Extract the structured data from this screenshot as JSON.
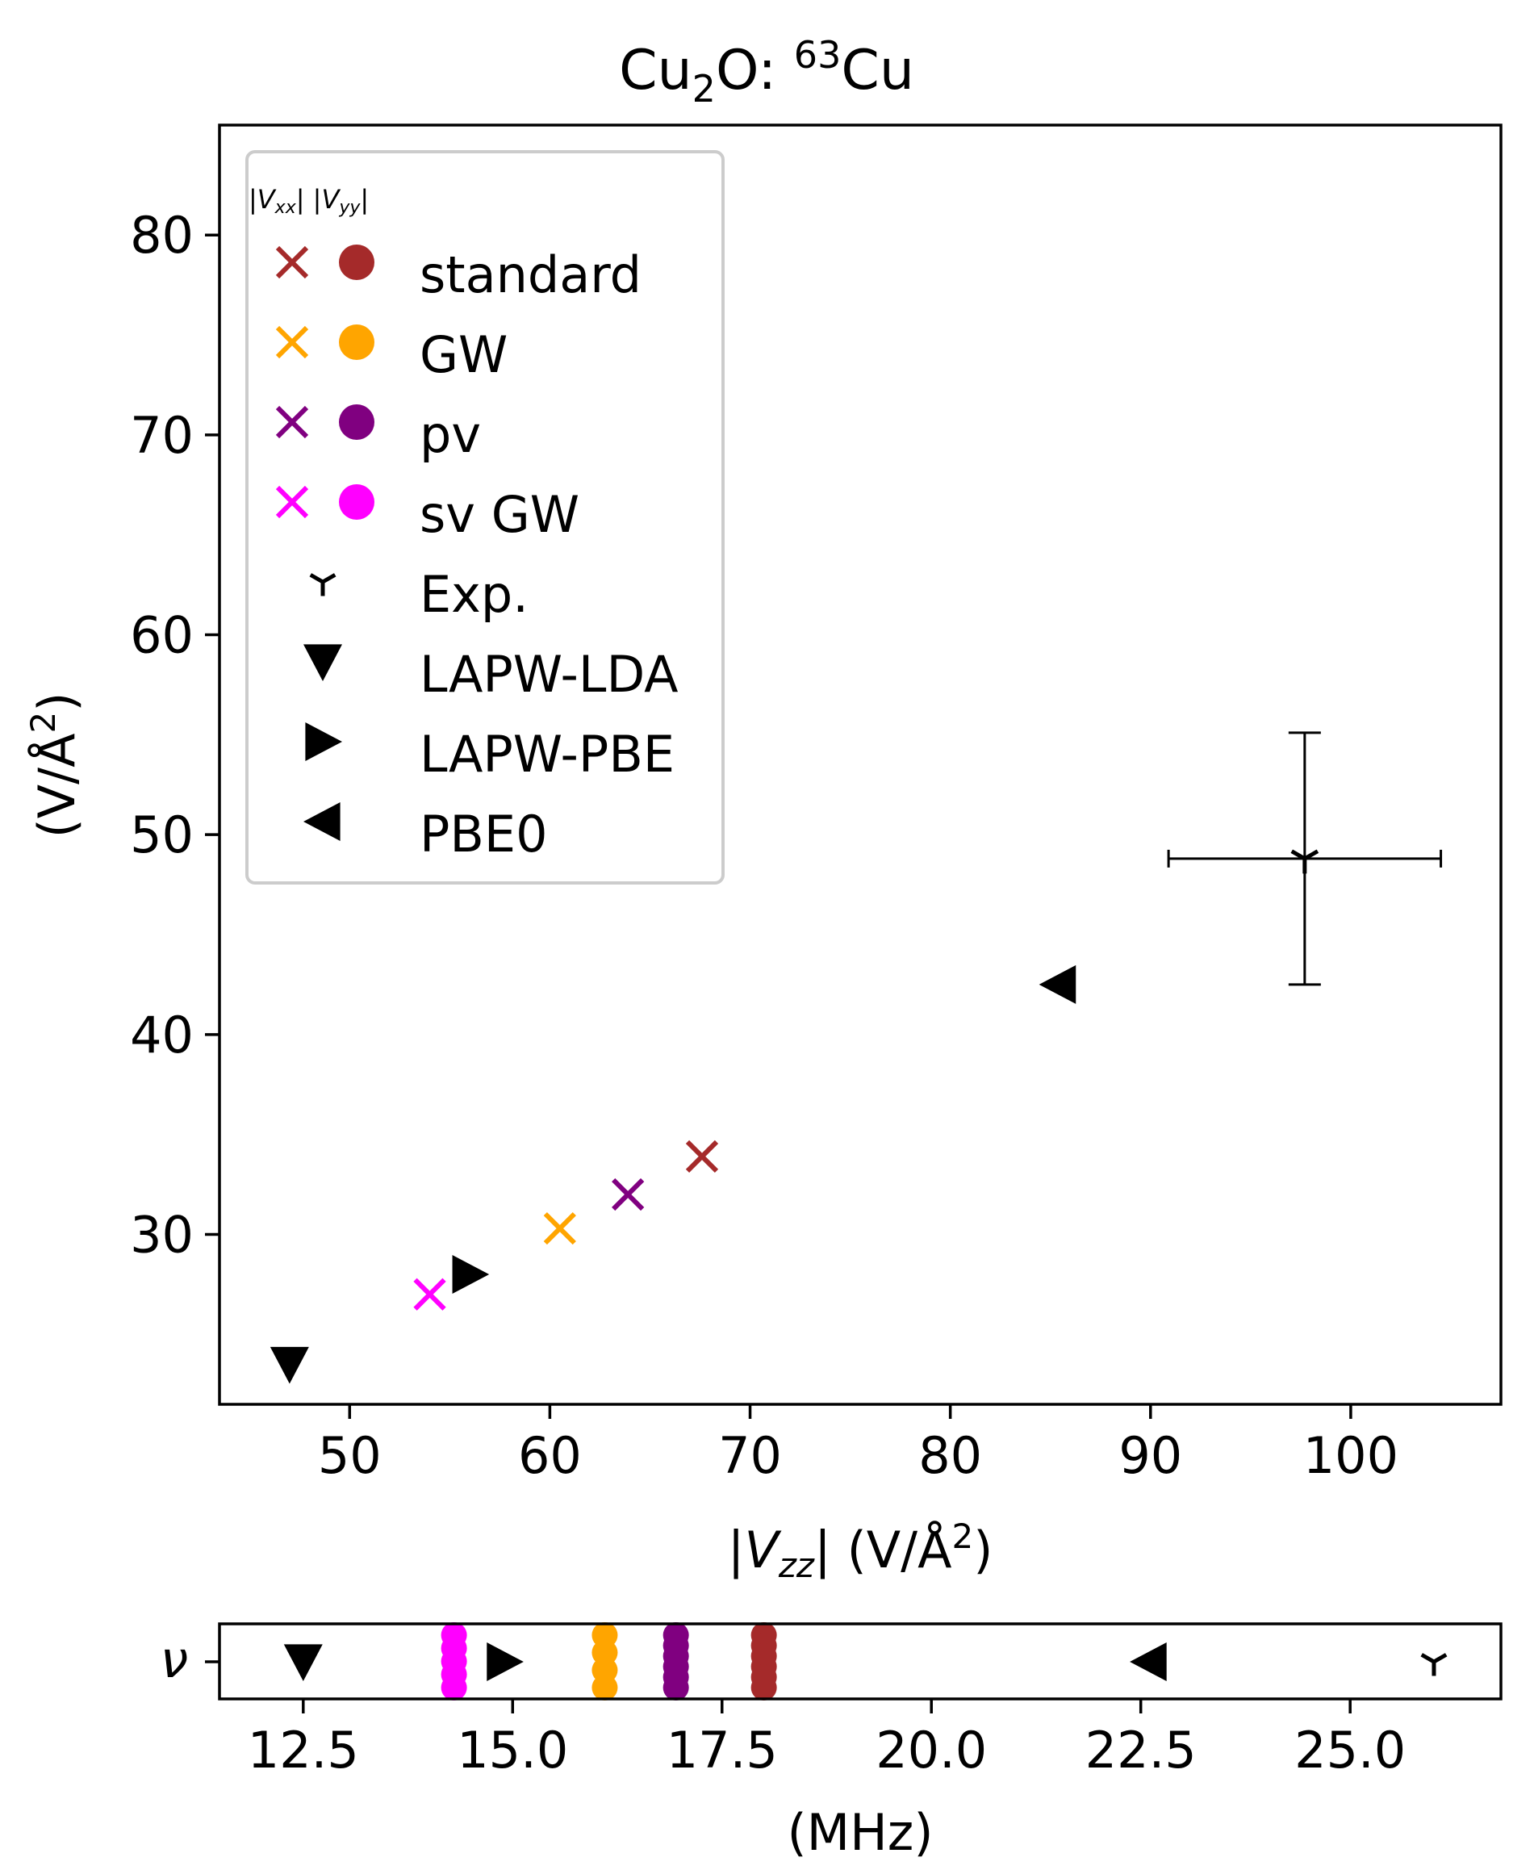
{
  "chart_data": [
    {
      "type": "scatter",
      "title": "Cu",
      "title_parts": [
        "Cu",
        "2",
        "O: ",
        "63",
        "Cu"
      ],
      "xlabel_parts": [
        "|",
        "V",
        "zz",
        "| (V/Å",
        "2",
        ")"
      ],
      "ylabel_parts": [
        "(V/Å",
        "2",
        ")"
      ],
      "xlim": [
        43.5,
        107.5
      ],
      "ylim": [
        21.5,
        85.5
      ],
      "xticks": [
        50,
        60,
        70,
        80,
        90,
        100
      ],
      "yticks": [
        30,
        40,
        50,
        60,
        70,
        80
      ],
      "grid": false,
      "legend": {
        "placement": "top-left",
        "title_parts": [
          "|",
          "V",
          "xx",
          "| |",
          "V",
          "yy",
          "|"
        ],
        "entries": [
          {
            "label": "standard",
            "marker": "x-dot",
            "color": "#a52a2a"
          },
          {
            "label": "GW",
            "marker": "x-dot",
            "color": "#ffa500"
          },
          {
            "label": "pv",
            "marker": "x-dot",
            "color": "#800080"
          },
          {
            "label": "sv GW",
            "marker": "x-dot",
            "color": "#ff00ff"
          },
          {
            "label": "Exp.",
            "marker": "tri-down",
            "color": "#000000"
          },
          {
            "label": "LAPW-LDA",
            "marker": "triangle-down",
            "color": "#000000"
          },
          {
            "label": "LAPW-PBE",
            "marker": "triangle-right",
            "color": "#000000"
          },
          {
            "label": "PBE0",
            "marker": "triangle-left",
            "color": "#000000"
          }
        ]
      },
      "series": [
        {
          "name": "standard",
          "color": "#a52a2a",
          "points": [
            {
              "x": 67.6,
              "y": 33.9
            }
          ]
        },
        {
          "name": "GW",
          "color": "#ffa500",
          "points": [
            {
              "x": 60.5,
              "y": 30.3
            }
          ]
        },
        {
          "name": "pv",
          "color": "#800080",
          "points": [
            {
              "x": 63.9,
              "y": 32.0
            }
          ]
        },
        {
          "name": "sv GW",
          "color": "#ff00ff",
          "points": [
            {
              "x": 54.0,
              "y": 27.0
            }
          ]
        },
        {
          "name": "Exp.",
          "color": "#000000",
          "points": [
            {
              "x": 97.7,
              "y": 48.8,
              "xerr": [
                90.9,
                104.5
              ],
              "yerr": [
                42.5,
                55.1
              ]
            }
          ]
        },
        {
          "name": "LAPW-LDA",
          "color": "#000000",
          "points": [
            {
              "x": 47.0,
              "y": 23.5
            }
          ]
        },
        {
          "name": "LAPW-PBE",
          "color": "#000000",
          "points": [
            {
              "x": 56.0,
              "y": 28.0
            }
          ]
        },
        {
          "name": "PBE0",
          "color": "#000000",
          "points": [
            {
              "x": 85.4,
              "y": 42.5
            }
          ]
        }
      ]
    },
    {
      "type": "scatter",
      "ylabel": "ν",
      "xlabel": "(MHz)",
      "xlim": [
        11.5,
        26.8
      ],
      "xticks": [
        12.5,
        15.0,
        17.5,
        20.0,
        22.5,
        25.0
      ],
      "xtick_labels": [
        "12.5",
        "15.0",
        "17.5",
        "20.0",
        "22.5",
        "25.0"
      ],
      "series": [
        {
          "name": "standard",
          "color": "#a52a2a",
          "values": [
            18.0,
            18.0,
            18.0,
            18.0,
            18.0,
            18.0
          ]
        },
        {
          "name": "GW",
          "color": "#ffa500",
          "values": [
            16.1,
            16.1,
            16.1,
            16.1
          ]
        },
        {
          "name": "pv",
          "color": "#800080",
          "values": [
            16.95,
            16.95,
            16.95,
            16.95,
            16.95,
            16.95
          ]
        },
        {
          "name": "sv GW",
          "color": "#ff00ff",
          "values": [
            14.3,
            14.3,
            14.3,
            14.3,
            14.3
          ]
        },
        {
          "name": "Exp.",
          "color": "#000000",
          "values": [
            26.0
          ]
        },
        {
          "name": "LAPW-LDA",
          "color": "#000000",
          "values": [
            12.5
          ]
        },
        {
          "name": "LAPW-PBE",
          "color": "#000000",
          "values": [
            14.9
          ]
        },
        {
          "name": "PBE0",
          "color": "#000000",
          "values": [
            22.6
          ]
        }
      ]
    }
  ]
}
